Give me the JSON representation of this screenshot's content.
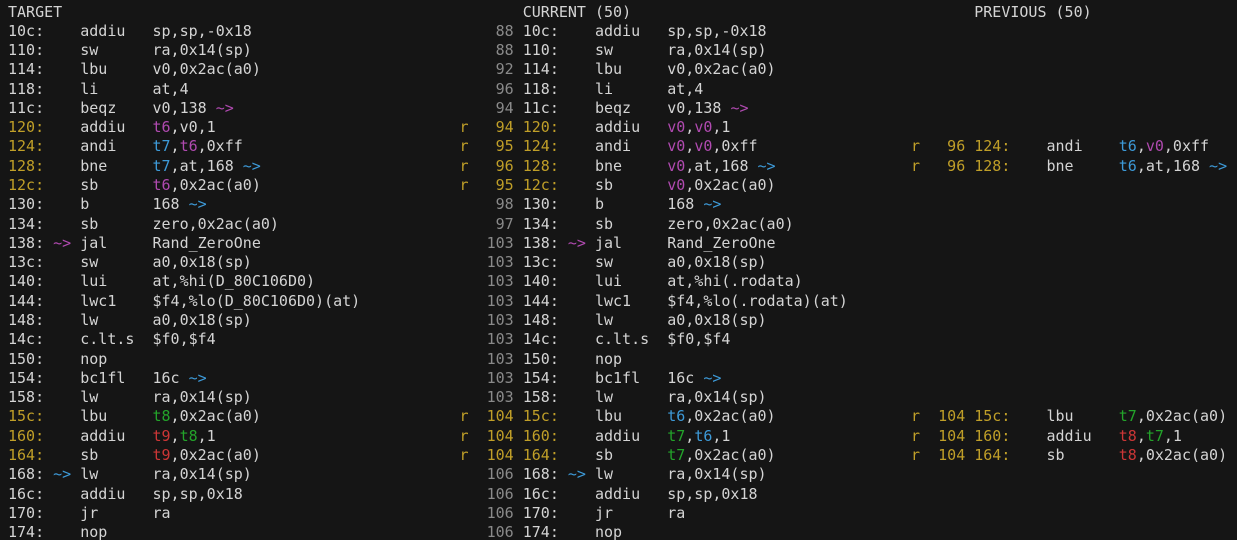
{
  "terminal": {
    "app": "asm-differ",
    "headers": {
      "target": "TARGET",
      "current": "CURRENT (50)",
      "previous": "PREVIOUS (50)"
    },
    "colors": {
      "fg": "#d4d4d4",
      "dim": "#8a8a8a",
      "yel": "#c09f28",
      "mag": "#b04ab0",
      "blu": "#3d9ad8",
      "grn": "#23a42a",
      "red": "#cc3636"
    },
    "rows": [
      [
        [
          0,
          "TARGET",
          "fg"
        ],
        [
          57,
          "CURRENT (50)",
          "fg"
        ],
        [
          107,
          "PREVIOUS (50)",
          "fg"
        ]
      ],
      [
        [
          0,
          "10c:",
          "fg"
        ],
        [
          8,
          "addiu",
          "fg"
        ],
        [
          16,
          "sp,sp,-0x18",
          "fg"
        ],
        [
          54,
          "88",
          "dim"
        ],
        [
          57,
          "10c:",
          "fg"
        ],
        [
          65,
          "addiu",
          "fg"
        ],
        [
          73,
          "sp,sp,-0x18",
          "fg"
        ]
      ],
      [
        [
          0,
          "110:",
          "fg"
        ],
        [
          8,
          "sw",
          "fg"
        ],
        [
          16,
          "ra,0x14(sp)",
          "fg"
        ],
        [
          54,
          "88",
          "dim"
        ],
        [
          57,
          "110:",
          "fg"
        ],
        [
          65,
          "sw",
          "fg"
        ],
        [
          73,
          "ra,0x14(sp)",
          "fg"
        ]
      ],
      [
        [
          0,
          "114:",
          "fg"
        ],
        [
          8,
          "lbu",
          "fg"
        ],
        [
          16,
          "v0,0x2ac(a0)",
          "fg"
        ],
        [
          54,
          "92",
          "dim"
        ],
        [
          57,
          "114:",
          "fg"
        ],
        [
          65,
          "lbu",
          "fg"
        ],
        [
          73,
          "v0,0x2ac(a0)",
          "fg"
        ]
      ],
      [
        [
          0,
          "118:",
          "fg"
        ],
        [
          8,
          "li",
          "fg"
        ],
        [
          16,
          "at,4",
          "fg"
        ],
        [
          54,
          "96",
          "dim"
        ],
        [
          57,
          "118:",
          "fg"
        ],
        [
          65,
          "li",
          "fg"
        ],
        [
          73,
          "at,4",
          "fg"
        ]
      ],
      [
        [
          0,
          "11c:",
          "fg"
        ],
        [
          8,
          "beqz",
          "fg"
        ],
        [
          16,
          "v0,138",
          "fg"
        ],
        [
          23,
          "~>",
          "mag"
        ],
        [
          54,
          "94",
          "dim"
        ],
        [
          57,
          "11c:",
          "fg"
        ],
        [
          65,
          "beqz",
          "fg"
        ],
        [
          73,
          "v0,138",
          "fg"
        ],
        [
          80,
          "~>",
          "mag"
        ]
      ],
      [
        [
          0,
          "120:",
          "yel"
        ],
        [
          8,
          "addiu",
          "fg"
        ],
        [
          16,
          "t6",
          "mag"
        ],
        [
          18,
          ",v0,1",
          "fg"
        ],
        [
          50,
          "r",
          "yel"
        ],
        [
          54,
          "94",
          "yel"
        ],
        [
          57,
          "120:",
          "yel"
        ],
        [
          65,
          "addiu",
          "fg"
        ],
        [
          73,
          "v0",
          "mag"
        ],
        [
          75,
          ",",
          "fg"
        ],
        [
          76,
          "v0",
          "mag"
        ],
        [
          78,
          ",1",
          "fg"
        ]
      ],
      [
        [
          0,
          "124:",
          "yel"
        ],
        [
          8,
          "andi",
          "fg"
        ],
        [
          16,
          "t7",
          "blu"
        ],
        [
          18,
          ",",
          "fg"
        ],
        [
          19,
          "t6",
          "mag"
        ],
        [
          21,
          ",0xff",
          "fg"
        ],
        [
          50,
          "r",
          "yel"
        ],
        [
          54,
          "95",
          "yel"
        ],
        [
          57,
          "124:",
          "yel"
        ],
        [
          65,
          "andi",
          "fg"
        ],
        [
          73,
          "v0",
          "mag"
        ],
        [
          75,
          ",",
          "fg"
        ],
        [
          76,
          "v0",
          "mag"
        ],
        [
          78,
          ",0xff",
          "fg"
        ],
        [
          100,
          "r",
          "yel"
        ],
        [
          104,
          "96",
          "yel"
        ],
        [
          107,
          "124:",
          "yel"
        ],
        [
          115,
          "andi",
          "fg"
        ],
        [
          123,
          "t6",
          "blu"
        ],
        [
          125,
          ",",
          "fg"
        ],
        [
          126,
          "v0",
          "mag"
        ],
        [
          128,
          ",0xff",
          "fg"
        ]
      ],
      [
        [
          0,
          "128:",
          "yel"
        ],
        [
          8,
          "bne",
          "fg"
        ],
        [
          16,
          "t7",
          "blu"
        ],
        [
          18,
          ",at,168",
          "fg"
        ],
        [
          26,
          "~>",
          "blu"
        ],
        [
          50,
          "r",
          "yel"
        ],
        [
          54,
          "96",
          "yel"
        ],
        [
          57,
          "128:",
          "yel"
        ],
        [
          65,
          "bne",
          "fg"
        ],
        [
          73,
          "v0",
          "mag"
        ],
        [
          75,
          ",at,168",
          "fg"
        ],
        [
          83,
          "~>",
          "blu"
        ],
        [
          100,
          "r",
          "yel"
        ],
        [
          104,
          "96",
          "yel"
        ],
        [
          107,
          "128:",
          "yel"
        ],
        [
          115,
          "bne",
          "fg"
        ],
        [
          123,
          "t6",
          "blu"
        ],
        [
          125,
          ",at,168",
          "fg"
        ],
        [
          133,
          "~>",
          "blu"
        ]
      ],
      [
        [
          0,
          "12c:",
          "yel"
        ],
        [
          8,
          "sb",
          "fg"
        ],
        [
          16,
          "t6",
          "mag"
        ],
        [
          18,
          ",0x2ac(a0)",
          "fg"
        ],
        [
          50,
          "r",
          "yel"
        ],
        [
          54,
          "95",
          "yel"
        ],
        [
          57,
          "12c:",
          "yel"
        ],
        [
          65,
          "sb",
          "fg"
        ],
        [
          73,
          "v0",
          "mag"
        ],
        [
          75,
          ",0x2ac(a0)",
          "fg"
        ]
      ],
      [
        [
          0,
          "130:",
          "fg"
        ],
        [
          8,
          "b",
          "fg"
        ],
        [
          16,
          "168",
          "fg"
        ],
        [
          20,
          "~>",
          "blu"
        ],
        [
          54,
          "98",
          "dim"
        ],
        [
          57,
          "130:",
          "fg"
        ],
        [
          65,
          "b",
          "fg"
        ],
        [
          73,
          "168",
          "fg"
        ],
        [
          77,
          "~>",
          "blu"
        ]
      ],
      [
        [
          0,
          "134:",
          "fg"
        ],
        [
          8,
          "sb",
          "fg"
        ],
        [
          16,
          "zero,0x2ac(a0)",
          "fg"
        ],
        [
          54,
          "97",
          "dim"
        ],
        [
          57,
          "134:",
          "fg"
        ],
        [
          65,
          "sb",
          "fg"
        ],
        [
          73,
          "zero,0x2ac(a0)",
          "fg"
        ]
      ],
      [
        [
          0,
          "138:",
          "fg"
        ],
        [
          5,
          "~>",
          "mag"
        ],
        [
          8,
          "jal",
          "fg"
        ],
        [
          16,
          "Rand_ZeroOne",
          "fg"
        ],
        [
          53,
          "103",
          "dim"
        ],
        [
          57,
          "138:",
          "fg"
        ],
        [
          62,
          "~>",
          "mag"
        ],
        [
          65,
          "jal",
          "fg"
        ],
        [
          73,
          "Rand_ZeroOne",
          "fg"
        ]
      ],
      [
        [
          0,
          "13c:",
          "fg"
        ],
        [
          8,
          "sw",
          "fg"
        ],
        [
          16,
          "a0,0x18(sp)",
          "fg"
        ],
        [
          53,
          "103",
          "dim"
        ],
        [
          57,
          "13c:",
          "fg"
        ],
        [
          65,
          "sw",
          "fg"
        ],
        [
          73,
          "a0,0x18(sp)",
          "fg"
        ]
      ],
      [
        [
          0,
          "140:",
          "fg"
        ],
        [
          8,
          "lui",
          "fg"
        ],
        [
          16,
          "at,%hi(D_80C106D0)",
          "fg"
        ],
        [
          53,
          "103",
          "dim"
        ],
        [
          57,
          "140:",
          "fg"
        ],
        [
          65,
          "lui",
          "fg"
        ],
        [
          73,
          "at,%hi(.rodata)",
          "fg"
        ]
      ],
      [
        [
          0,
          "144:",
          "fg"
        ],
        [
          8,
          "lwc1",
          "fg"
        ],
        [
          16,
          "$f4,%lo(D_80C106D0)(at)",
          "fg"
        ],
        [
          53,
          "103",
          "dim"
        ],
        [
          57,
          "144:",
          "fg"
        ],
        [
          65,
          "lwc1",
          "fg"
        ],
        [
          73,
          "$f4,%lo(.rodata)(at)",
          "fg"
        ]
      ],
      [
        [
          0,
          "148:",
          "fg"
        ],
        [
          8,
          "lw",
          "fg"
        ],
        [
          16,
          "a0,0x18(sp)",
          "fg"
        ],
        [
          53,
          "103",
          "dim"
        ],
        [
          57,
          "148:",
          "fg"
        ],
        [
          65,
          "lw",
          "fg"
        ],
        [
          73,
          "a0,0x18(sp)",
          "fg"
        ]
      ],
      [
        [
          0,
          "14c:",
          "fg"
        ],
        [
          8,
          "c.lt.s",
          "fg"
        ],
        [
          16,
          "$f0,$f4",
          "fg"
        ],
        [
          53,
          "103",
          "dim"
        ],
        [
          57,
          "14c:",
          "fg"
        ],
        [
          65,
          "c.lt.s",
          "fg"
        ],
        [
          73,
          "$f0,$f4",
          "fg"
        ]
      ],
      [
        [
          0,
          "150:",
          "fg"
        ],
        [
          8,
          "nop",
          "fg"
        ],
        [
          53,
          "103",
          "dim"
        ],
        [
          57,
          "150:",
          "fg"
        ],
        [
          65,
          "nop",
          "fg"
        ]
      ],
      [
        [
          0,
          "154:",
          "fg"
        ],
        [
          8,
          "bc1fl",
          "fg"
        ],
        [
          16,
          "16c",
          "fg"
        ],
        [
          20,
          "~>",
          "blu"
        ],
        [
          53,
          "103",
          "dim"
        ],
        [
          57,
          "154:",
          "fg"
        ],
        [
          65,
          "bc1fl",
          "fg"
        ],
        [
          73,
          "16c",
          "fg"
        ],
        [
          77,
          "~>",
          "blu"
        ]
      ],
      [
        [
          0,
          "158:",
          "fg"
        ],
        [
          8,
          "lw",
          "fg"
        ],
        [
          16,
          "ra,0x14(sp)",
          "fg"
        ],
        [
          53,
          "103",
          "dim"
        ],
        [
          57,
          "158:",
          "fg"
        ],
        [
          65,
          "lw",
          "fg"
        ],
        [
          73,
          "ra,0x14(sp)",
          "fg"
        ]
      ],
      [
        [
          0,
          "15c:",
          "yel"
        ],
        [
          8,
          "lbu",
          "fg"
        ],
        [
          16,
          "t8",
          "grn"
        ],
        [
          18,
          ",0x2ac(a0)",
          "fg"
        ],
        [
          50,
          "r",
          "yel"
        ],
        [
          53,
          "104",
          "yel"
        ],
        [
          57,
          "15c:",
          "yel"
        ],
        [
          65,
          "lbu",
          "fg"
        ],
        [
          73,
          "t6",
          "blu"
        ],
        [
          75,
          ",0x2ac(a0)",
          "fg"
        ],
        [
          100,
          "r",
          "yel"
        ],
        [
          103,
          "104",
          "yel"
        ],
        [
          107,
          "15c:",
          "yel"
        ],
        [
          115,
          "lbu",
          "fg"
        ],
        [
          123,
          "t7",
          "grn"
        ],
        [
          125,
          ",0x2ac(a0)",
          "fg"
        ]
      ],
      [
        [
          0,
          "160:",
          "yel"
        ],
        [
          8,
          "addiu",
          "fg"
        ],
        [
          16,
          "t9",
          "red"
        ],
        [
          18,
          ",",
          "fg"
        ],
        [
          19,
          "t8",
          "grn"
        ],
        [
          21,
          ",1",
          "fg"
        ],
        [
          50,
          "r",
          "yel"
        ],
        [
          53,
          "104",
          "yel"
        ],
        [
          57,
          "160:",
          "yel"
        ],
        [
          65,
          "addiu",
          "fg"
        ],
        [
          73,
          "t7",
          "grn"
        ],
        [
          75,
          ",",
          "fg"
        ],
        [
          76,
          "t6",
          "blu"
        ],
        [
          78,
          ",1",
          "fg"
        ],
        [
          100,
          "r",
          "yel"
        ],
        [
          103,
          "104",
          "yel"
        ],
        [
          107,
          "160:",
          "yel"
        ],
        [
          115,
          "addiu",
          "fg"
        ],
        [
          123,
          "t8",
          "red"
        ],
        [
          125,
          ",",
          "fg"
        ],
        [
          126,
          "t7",
          "grn"
        ],
        [
          128,
          ",1",
          "fg"
        ]
      ],
      [
        [
          0,
          "164:",
          "yel"
        ],
        [
          8,
          "sb",
          "fg"
        ],
        [
          16,
          "t9",
          "red"
        ],
        [
          18,
          ",0x2ac(a0)",
          "fg"
        ],
        [
          50,
          "r",
          "yel"
        ],
        [
          53,
          "104",
          "yel"
        ],
        [
          57,
          "164:",
          "yel"
        ],
        [
          65,
          "sb",
          "fg"
        ],
        [
          73,
          "t7",
          "grn"
        ],
        [
          75,
          ",0x2ac(a0)",
          "fg"
        ],
        [
          100,
          "r",
          "yel"
        ],
        [
          103,
          "104",
          "yel"
        ],
        [
          107,
          "164:",
          "yel"
        ],
        [
          115,
          "sb",
          "fg"
        ],
        [
          123,
          "t8",
          "red"
        ],
        [
          125,
          ",0x2ac(a0)",
          "fg"
        ]
      ],
      [
        [
          0,
          "168:",
          "fg"
        ],
        [
          5,
          "~>",
          "blu"
        ],
        [
          8,
          "lw",
          "fg"
        ],
        [
          16,
          "ra,0x14(sp)",
          "fg"
        ],
        [
          53,
          "106",
          "dim"
        ],
        [
          57,
          "168:",
          "fg"
        ],
        [
          62,
          "~>",
          "blu"
        ],
        [
          65,
          "lw",
          "fg"
        ],
        [
          73,
          "ra,0x14(sp)",
          "fg"
        ]
      ],
      [
        [
          0,
          "16c:",
          "fg"
        ],
        [
          8,
          "addiu",
          "fg"
        ],
        [
          16,
          "sp,sp,0x18",
          "fg"
        ],
        [
          53,
          "106",
          "dim"
        ],
        [
          57,
          "16c:",
          "fg"
        ],
        [
          65,
          "addiu",
          "fg"
        ],
        [
          73,
          "sp,sp,0x18",
          "fg"
        ]
      ],
      [
        [
          0,
          "170:",
          "fg"
        ],
        [
          8,
          "jr",
          "fg"
        ],
        [
          16,
          "ra",
          "fg"
        ],
        [
          53,
          "106",
          "dim"
        ],
        [
          57,
          "170:",
          "fg"
        ],
        [
          65,
          "jr",
          "fg"
        ],
        [
          73,
          "ra",
          "fg"
        ]
      ],
      [
        [
          0,
          "174:",
          "fg"
        ],
        [
          8,
          "nop",
          "fg"
        ],
        [
          53,
          "106",
          "dim"
        ],
        [
          57,
          "174:",
          "fg"
        ],
        [
          65,
          "nop",
          "fg"
        ]
      ]
    ]
  }
}
